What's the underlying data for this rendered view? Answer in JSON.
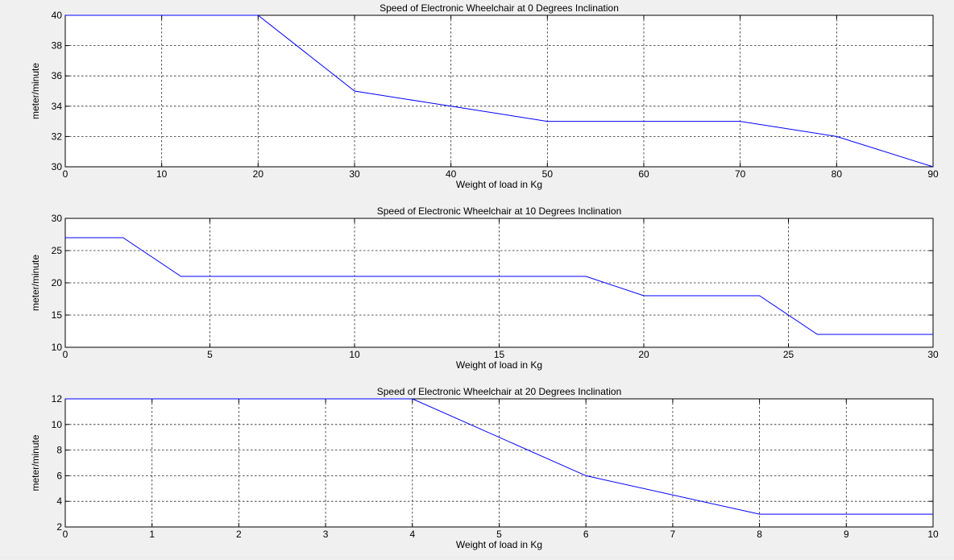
{
  "chart_data": [
    {
      "type": "line",
      "title": "Speed  of Electronic Wheelchair at  0 Degrees Inclination",
      "xlabel": "Weight of load in  Kg",
      "ylabel": "meter/minute",
      "xlim": [
        0,
        90
      ],
      "ylim": [
        30,
        40
      ],
      "xticks": [
        0,
        10,
        20,
        30,
        40,
        50,
        60,
        70,
        80,
        90
      ],
      "yticks": [
        30,
        32,
        34,
        36,
        38,
        40
      ],
      "grid": true,
      "color": "#0000ff",
      "series": [
        {
          "x": [
            0,
            20,
            30,
            40,
            50,
            60,
            70,
            80,
            90
          ],
          "y": [
            40,
            40,
            35,
            34,
            33,
            33,
            33,
            32,
            30
          ]
        }
      ]
    },
    {
      "type": "line",
      "title": "Speed  of Electronic Wheelchair at  10 Degrees Inclination",
      "xlabel": "Weight of load in  Kg",
      "ylabel": "meter/minute",
      "xlim": [
        0,
        30
      ],
      "ylim": [
        10,
        30
      ],
      "xticks": [
        0,
        5,
        10,
        15,
        20,
        25,
        30
      ],
      "yticks": [
        10,
        15,
        20,
        25,
        30
      ],
      "grid": true,
      "color": "#0000ff",
      "series": [
        {
          "x": [
            0,
            2,
            4,
            6,
            8,
            10,
            12,
            14,
            16,
            18,
            20,
            22,
            24,
            26,
            28,
            30
          ],
          "y": [
            27,
            27,
            21,
            21,
            21,
            21,
            21,
            21,
            21,
            21,
            18,
            18,
            18,
            12,
            12,
            12
          ]
        }
      ]
    },
    {
      "type": "line",
      "title": "Speed  of Electronic Wheelchair at  20 Degrees Inclination",
      "xlabel": "Weight of load in  Kg",
      "ylabel": "meter/minute",
      "xlim": [
        0,
        10
      ],
      "ylim": [
        2,
        12
      ],
      "xticks": [
        0,
        1,
        2,
        3,
        4,
        5,
        6,
        7,
        8,
        9,
        10
      ],
      "yticks": [
        2,
        4,
        6,
        8,
        10,
        12
      ],
      "grid": true,
      "color": "#0000ff",
      "series": [
        {
          "x": [
            0,
            2,
            4,
            6,
            8,
            10
          ],
          "y": [
            12,
            12,
            12,
            6,
            3,
            3
          ]
        }
      ]
    }
  ]
}
